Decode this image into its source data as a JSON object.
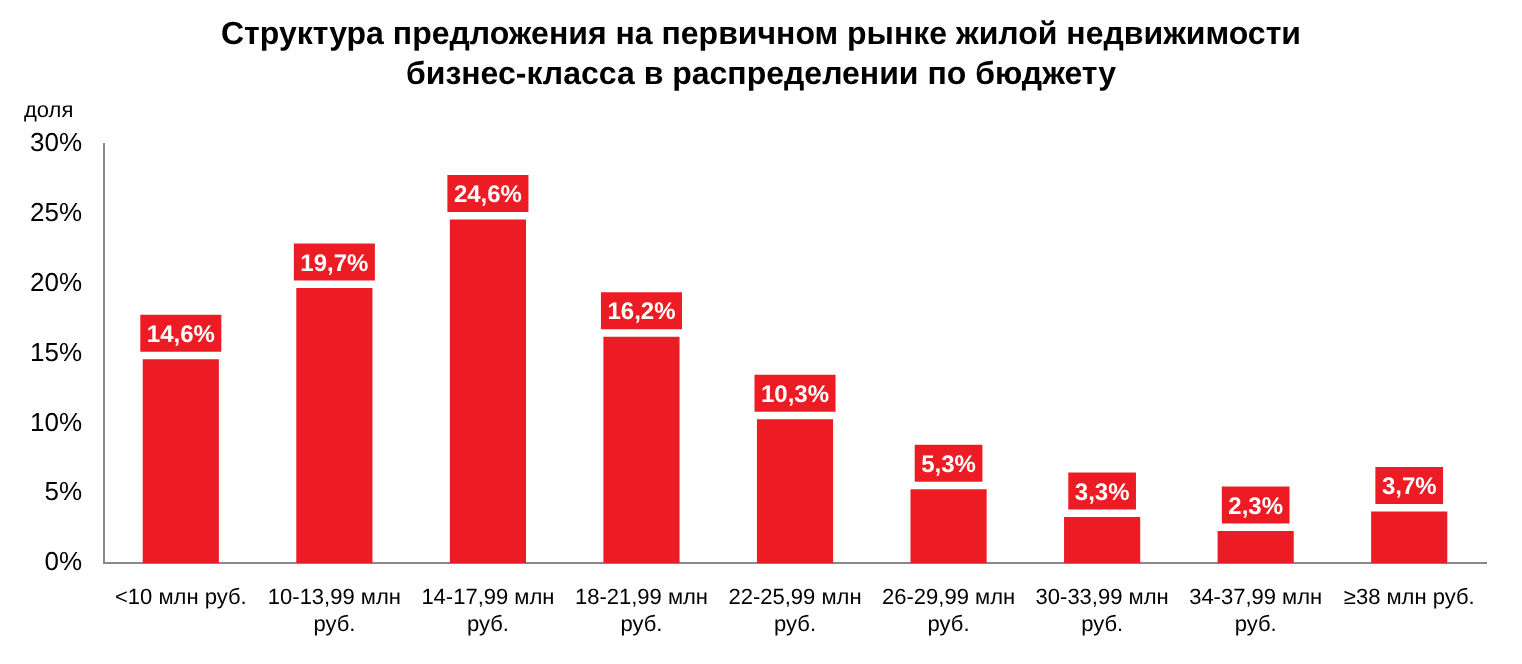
{
  "chart_data": {
    "type": "bar",
    "title": "Структура предложения на первичном рынке жилой недвижимости бизнес-класса в распределении по бюджету",
    "ylabel": "доля",
    "categories": [
      "<10 млн руб.",
      "10-13,99 млн руб.",
      "14-17,99 млн руб.",
      "18-21,99 млн руб.",
      "22-25,99 млн руб.",
      "26-29,99 млн руб.",
      "30-33,99 млн руб.",
      "34-37,99 млн руб.",
      "≥38 млн руб."
    ],
    "values": [
      14.6,
      19.7,
      24.6,
      16.2,
      10.3,
      5.3,
      3.3,
      2.3,
      3.7
    ],
    "value_labels": [
      "14,6%",
      "19,7%",
      "24,6%",
      "16,2%",
      "10,3%",
      "5,3%",
      "3,3%",
      "2,3%",
      "3,7%"
    ],
    "color": "#ed1c24",
    "ylim": [
      0,
      30
    ],
    "yticks": [
      {
        "value": 0,
        "label": "0%"
      },
      {
        "value": 5,
        "label": "5%"
      },
      {
        "value": 10,
        "label": "10%"
      },
      {
        "value": 15,
        "label": "15%"
      },
      {
        "value": 20,
        "label": "20%"
      },
      {
        "value": 25,
        "label": "25%"
      },
      {
        "value": 30,
        "label": "30%"
      }
    ],
    "grid": false,
    "legend": false
  }
}
